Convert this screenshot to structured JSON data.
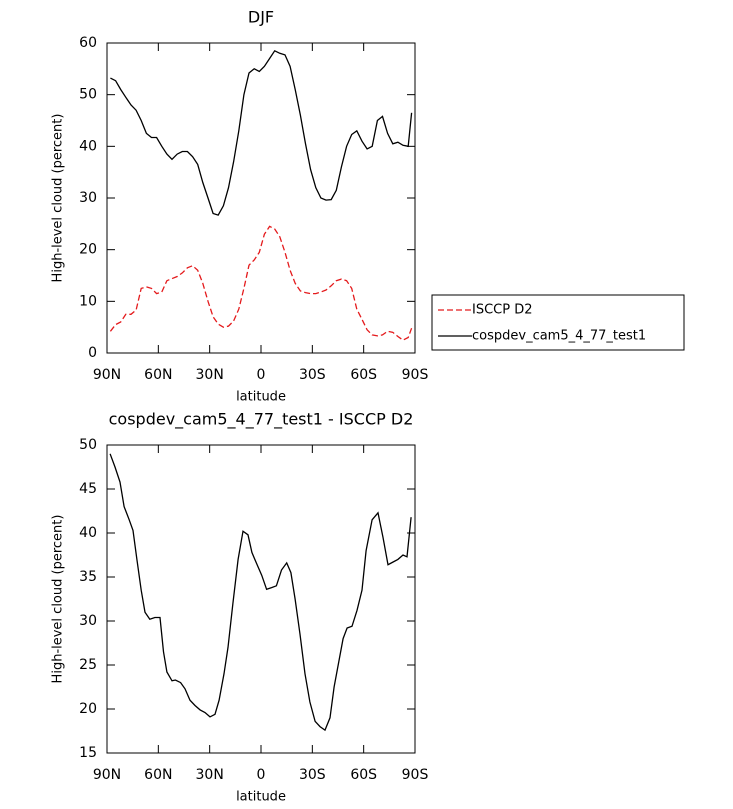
{
  "chart_data": [
    {
      "type": "line",
      "title": "DJF",
      "xlabel": "latitude",
      "ylabel": "High-level cloud (percent)",
      "x": [
        88,
        85,
        82,
        79,
        76,
        73,
        70,
        67,
        64,
        61,
        58,
        55,
        52,
        49,
        46,
        43,
        40,
        37,
        34,
        31,
        28,
        25,
        22,
        19,
        16,
        13,
        10,
        7,
        4,
        1,
        -2,
        -5,
        -8,
        -11,
        -14,
        -17,
        -20,
        -23,
        -26,
        -29,
        -32,
        -35,
        -38,
        -41,
        -44,
        -47,
        -50,
        -53,
        -56,
        -59,
        -62,
        -65,
        -68,
        -71,
        -74,
        -77,
        -80,
        -83,
        -86,
        -88
      ],
      "series": [
        {
          "name": "ISCCP D2",
          "color": "#e41a1c",
          "dash": true,
          "values": [
            4.2,
            5.5,
            6,
            7.5,
            7.5,
            8.3,
            12.5,
            12.8,
            12.5,
            11.5,
            11.8,
            14,
            14.4,
            14.8,
            15.5,
            16.5,
            16.9,
            16,
            13.5,
            10,
            7,
            5.6,
            5,
            5.2,
            6.2,
            8.5,
            12.5,
            17,
            18,
            19.5,
            23,
            24.5,
            24,
            22.5,
            19.5,
            16,
            13.5,
            12,
            11.7,
            11.5,
            11.5,
            11.8,
            12.2,
            13,
            14,
            14.3,
            14,
            12.5,
            8.5,
            6.5,
            4.5,
            3.5,
            3.3,
            3.5,
            4.2,
            4,
            3.2,
            2.5,
            3,
            4.8
          ]
        },
        {
          "name": "cospdev_cam5_4_77_test1",
          "color": "#000000",
          "dash": false,
          "values": [
            53.2,
            52.7,
            51,
            49.5,
            48,
            47,
            45,
            42.5,
            41.7,
            41.7,
            40,
            38.5,
            37.5,
            38.5,
            39,
            39,
            38,
            36.5,
            33,
            30,
            27,
            26.7,
            28.5,
            32,
            37,
            43,
            50,
            54.2,
            55,
            54.5,
            55.5,
            57,
            58.5,
            58,
            57.7,
            55.5,
            51,
            46,
            40.5,
            35.5,
            32,
            30,
            29.6,
            29.7,
            31.5,
            36,
            40,
            42.3,
            43,
            41,
            39.5,
            40,
            45,
            45.8,
            42.5,
            40.5,
            40.8,
            40.2,
            40,
            46.5
          ]
        }
      ],
      "xlim": [
        90,
        -90
      ],
      "xticks": [
        {
          "value": 90,
          "label": "90N"
        },
        {
          "value": 60,
          "label": "60N"
        },
        {
          "value": 30,
          "label": "30N"
        },
        0,
        {
          "value": -30,
          "label": "30S"
        },
        {
          "value": -60,
          "label": "60S"
        },
        {
          "value": -90,
          "label": "90S"
        }
      ],
      "ylim": [
        0,
        60
      ],
      "yticks": [
        0,
        10,
        20,
        30,
        40,
        50,
        60
      ],
      "legend": "right"
    },
    {
      "type": "line",
      "title": "cospdev_cam5_4_77_test1 - ISCCP D2",
      "xlabel": "latitude",
      "ylabel": "High-level cloud (percent)",
      "x": [
        88.2,
        85.3,
        82.4,
        80,
        77,
        74.8,
        72.5,
        70,
        67.8,
        65,
        62,
        59,
        57,
        55,
        52,
        50,
        47,
        44.4,
        41.5,
        38.6,
        35.6,
        32.7,
        29.8,
        26.9,
        24.5,
        21.6,
        19.3,
        16.4,
        13.4,
        10.5,
        7.6,
        5.3,
        2.5,
        -0.4,
        -3.3,
        -6.2,
        -9,
        -12,
        -15,
        -17.5,
        -19.9,
        -22.8,
        -25.7,
        -28.6,
        -31.6,
        -34.5,
        -37.4,
        -40.3,
        -42.7,
        -45.6,
        -48,
        -50.3,
        -53.2,
        -56.1,
        -59,
        -61.4,
        -64.9,
        -68.4,
        -71.3,
        -74.2,
        -77.2,
        -80,
        -83,
        -85.3,
        -87.7
      ],
      "series": [
        {
          "color": "#000000",
          "dash": false,
          "values": [
            49,
            47.5,
            45.8,
            43,
            41.5,
            40.3,
            37,
            33.5,
            31,
            30.2,
            30.4,
            30.4,
            26.5,
            24.2,
            23.2,
            23.3,
            23,
            22.3,
            21,
            20.4,
            19.9,
            19.6,
            19.1,
            19.4,
            21,
            24,
            27,
            32,
            37,
            40.2,
            39.8,
            37.8,
            36.5,
            35.2,
            33.6,
            33.8,
            34,
            35.8,
            36.6,
            35.5,
            32.5,
            28.5,
            24,
            20.8,
            18.6,
            18,
            17.6,
            19,
            22.5,
            25.5,
            28,
            29.2,
            29.4,
            31.2,
            33.5,
            38,
            41.5,
            42.3,
            39.5,
            36.4,
            36.7,
            37,
            37.5,
            37.3,
            41.8
          ]
        }
      ],
      "xlim": [
        90,
        -90
      ],
      "xticks": [
        {
          "value": 90,
          "label": "90N"
        },
        {
          "value": 60,
          "label": "60N"
        },
        {
          "value": 30,
          "label": "30N"
        },
        0,
        {
          "value": -30,
          "label": "30S"
        },
        {
          "value": -60,
          "label": "60S"
        },
        {
          "value": -90,
          "label": "90S"
        }
      ],
      "ylim": [
        15,
        50
      ],
      "yticks": [
        15,
        20,
        25,
        30,
        35,
        40,
        45,
        50
      ]
    }
  ]
}
